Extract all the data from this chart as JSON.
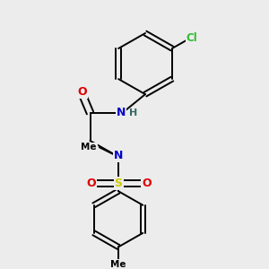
{
  "background_color": "#ececec",
  "fig_size": [
    3.0,
    3.0
  ],
  "dpi": 100,
  "atom_colors": {
    "C": "#000000",
    "N": "#0000cc",
    "O": "#dd0000",
    "S": "#cccc00",
    "Cl": "#33bb33",
    "H": "#336666"
  },
  "bond_color": "#000000",
  "bond_width": 1.4,
  "font_size": 9
}
